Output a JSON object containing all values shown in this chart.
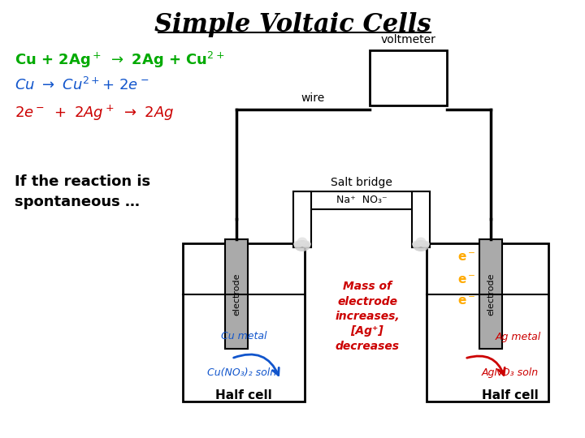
{
  "title": "Simple Voltaic Cells",
  "title_fontsize": 22,
  "title_color": "#000000",
  "bg_color": "#ffffff",
  "voltmeter_label": "voltmeter",
  "wire_label": "wire",
  "salt_bridge_label": "Salt bridge",
  "na_no3_label": "Na⁺  NO₃⁻",
  "electrode_label": "electrode",
  "cu_metal_label": "Cu metal",
  "cu_soln_label": "Cu(NO₃)₂ soln",
  "half_cell_label": "Half cell",
  "ag_metal_label": "Ag metal",
  "ag_soln_label": "AgNO₃ soln",
  "half_cell_label2": "Half cell",
  "mass_text": "Mass of\nelectrode\nincreases,\n[Ag⁺]\ndecreases",
  "electron_color": "#ffaa00",
  "cu_color": "#1155cc",
  "red_color": "#cc0000",
  "green_color": "#00aa00",
  "gray_electrode": "#aaaaaa",
  "black": "#000000",
  "lw_wire": 2.5
}
